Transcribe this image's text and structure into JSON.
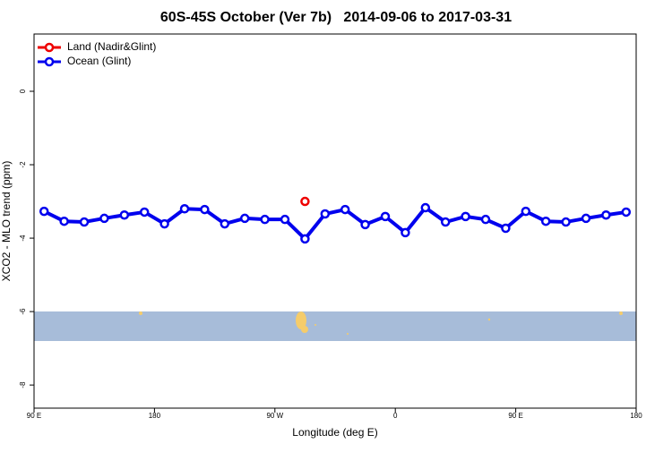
{
  "chart_data": {
    "type": "line",
    "title": "60S-45S October (Ver 7b)   2014-09-06 to 2017-03-31",
    "x_label": "Longitude (deg E)",
    "y_label": "XCO2 - MLO trend (ppm)",
    "xlim": [
      90,
      540
    ],
    "ylim": [
      -8.63,
      1.56
    ],
    "xticks": [
      {
        "value": 90,
        "label": "90 E"
      },
      180,
      {
        "value": 270,
        "label": "90 W"
      },
      {
        "value": 360,
        "label": "0"
      },
      {
        "value": 450,
        "label": "90 E"
      },
      {
        "value": 540,
        "label": "180"
      }
    ],
    "yticks": [
      -8,
      -6,
      -4,
      -2,
      0
    ],
    "legend": "top-left",
    "series": [
      {
        "name": "Land (Nadir&Glint)",
        "color": "#ee0000",
        "x": [
          292.5
        ],
        "values": [
          -3.0
        ]
      },
      {
        "name": "Ocean (Glint)",
        "color": "#0000ee",
        "x": [
          97.5,
          112.5,
          127.5,
          142.5,
          157.5,
          172.5,
          187.5,
          202.5,
          217.5,
          232.5,
          247.5,
          262.5,
          277.5,
          292.5,
          307.5,
          322.5,
          337.5,
          352.5,
          367.5,
          382.5,
          397.5,
          412.5,
          427.5,
          442.5,
          457.5,
          472.5,
          487.5,
          502.5,
          517.5,
          532.5
        ],
        "values": [
          -3.27,
          -3.54,
          -3.56,
          -3.46,
          -3.37,
          -3.29,
          -3.61,
          -3.2,
          -3.22,
          -3.61,
          -3.46,
          -3.49,
          -3.49,
          -4.02,
          -3.34,
          -3.22,
          -3.63,
          -3.41,
          -3.85,
          -3.17,
          -3.56,
          -3.41,
          -3.49,
          -3.73,
          -3.27,
          -3.54,
          -3.56,
          -3.46,
          -3.37,
          -3.29
        ]
      }
    ]
  }
}
